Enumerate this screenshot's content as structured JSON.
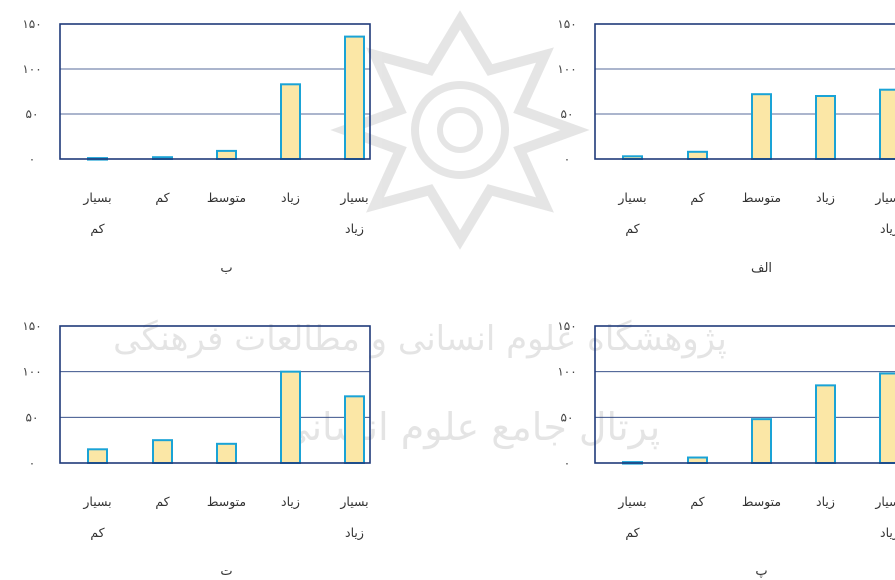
{
  "watermark": {
    "line1": "پژوهشگاه علوم انسانی و مطالعات فرهنگی",
    "line2": "پرتال جامع علوم انسانی"
  },
  "colors": {
    "frame": "#1f3a7a",
    "bar_fill": "#fbe7a6",
    "bar_stroke": "#1aa3d6",
    "grid": "#1f3a7a"
  },
  "chart_data": [
    {
      "type": "bar",
      "title": "الف",
      "categories": [
        "بسیار|کم",
        "کم",
        "متوسط",
        "زیاد",
        "بسیار|زیاد"
      ],
      "values": [
        3,
        8,
        72,
        70,
        77
      ],
      "ylim": [
        0,
        150
      ],
      "yticks": [
        "۰",
        "۵۰",
        "۱۰۰",
        "۱۵۰"
      ],
      "grid": true
    },
    {
      "type": "bar",
      "title": "ب",
      "categories": [
        "بسیار|کم",
        "کم",
        "متوسط",
        "زیاد",
        "بسیار|زیاد"
      ],
      "values": [
        1,
        2,
        9,
        83,
        136
      ],
      "ylim": [
        0,
        150
      ],
      "yticks": [
        "۰",
        "۵۰",
        "۱۰۰",
        "۱۵۰"
      ],
      "grid": true
    },
    {
      "type": "bar",
      "title": "پ",
      "categories": [
        "بسیار|کم",
        "کم",
        "متوسط",
        "زیاد",
        "بسیار|زیاد"
      ],
      "values": [
        1,
        6,
        48,
        85,
        98
      ],
      "ylim": [
        0,
        150
      ],
      "yticks": [
        "۰",
        "۵۰",
        "۱۰۰",
        "۱۵۰"
      ],
      "grid": true
    },
    {
      "type": "bar",
      "title": "ت",
      "categories": [
        "بسیار|کم",
        "کم",
        "متوسط",
        "زیاد",
        "بسیار|زیاد"
      ],
      "values": [
        15,
        25,
        21,
        100,
        73
      ],
      "ylim": [
        0,
        150
      ],
      "yticks": [
        "۰",
        "۵۰",
        "۱۰۰",
        "۱۵۰"
      ],
      "grid": true
    }
  ]
}
